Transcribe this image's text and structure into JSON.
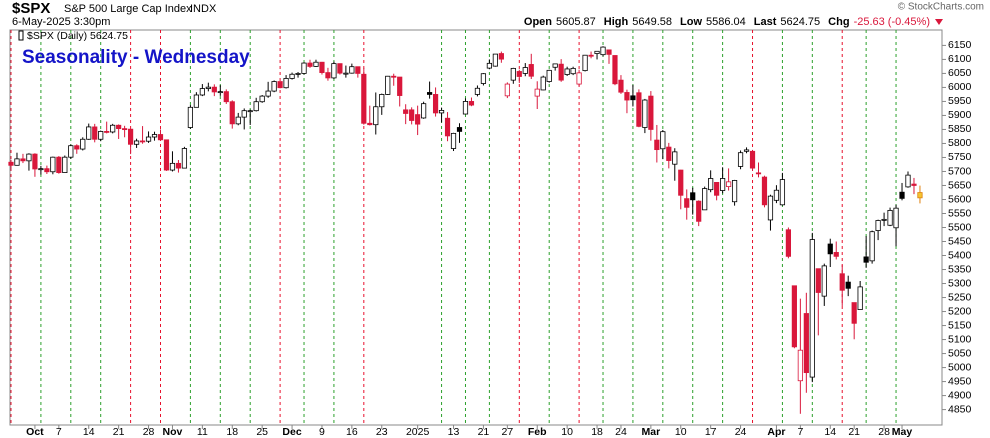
{
  "chart_data": {
    "type": "candlestick",
    "symbol": "$SPX",
    "name": "S&P 500 Large Cap Index",
    "exchange": "INDX",
    "date": "6-May-2025 3:30pm",
    "quote": [
      {
        "label": "Open",
        "value": 5605.87
      },
      {
        "label": "High",
        "value": 5649.58
      },
      {
        "label": "Low",
        "value": 5586.04
      },
      {
        "label": "Last",
        "value": 5624.75
      }
    ],
    "change_label": "Chg",
    "change": "-25.63 (-0.45%)",
    "copyright": "© StockCharts.com",
    "legend_label": "$SPX (Daily) 5624.75",
    "title": "Seasonality - Wednesday",
    "colors": {
      "up": "#000000",
      "down": "#d9173b",
      "live": "#f4c430",
      "live_edge": "#e0800b",
      "title": "#1414c8",
      "change": "#d9173b"
    },
    "ylim": [
      4795,
      6205
    ],
    "yticks": [
      4850,
      4900,
      4950,
      5000,
      5050,
      5100,
      5150,
      5200,
      5250,
      5300,
      5350,
      5400,
      5450,
      5500,
      5550,
      5600,
      5650,
      5700,
      5750,
      5800,
      5850,
      5900,
      5950,
      6000,
      6050,
      6100,
      6150
    ],
    "grid": false,
    "categories": [
      null,
      null,
      null,
      null,
      "Oct",
      null,
      null,
      null,
      "7",
      null,
      null,
      null,
      null,
      "14",
      null,
      null,
      null,
      null,
      "21",
      null,
      null,
      null,
      null,
      "28",
      null,
      null,
      null,
      "Nov",
      null,
      null,
      null,
      null,
      "11",
      null,
      null,
      null,
      null,
      "18",
      null,
      null,
      null,
      null,
      "25",
      null,
      null,
      null,
      null,
      "Dec",
      null,
      null,
      null,
      null,
      "9",
      null,
      null,
      null,
      null,
      "16",
      null,
      null,
      null,
      null,
      "23",
      null,
      null,
      null,
      null,
      null,
      "2025",
      null,
      null,
      null,
      null,
      null,
      "13",
      null,
      null,
      null,
      null,
      "21",
      null,
      null,
      null,
      "27",
      null,
      null,
      null,
      null,
      "Feb",
      null,
      null,
      null,
      null,
      "10",
      null,
      null,
      null,
      null,
      "18",
      null,
      null,
      null,
      "24",
      null,
      null,
      null,
      null,
      "Mar",
      null,
      null,
      null,
      null,
      "10",
      null,
      null,
      null,
      null,
      "17",
      null,
      null,
      null,
      null,
      "24",
      null,
      null,
      null,
      null,
      null,
      "Apr",
      null,
      null,
      null,
      "7",
      null,
      null,
      null,
      null,
      "14",
      null,
      null,
      null,
      "21",
      null,
      null,
      null,
      null,
      "28",
      null,
      null,
      "May",
      null,
      null,
      null
    ],
    "wednesday_lines": [
      "#e8112d",
      null,
      null,
      null,
      null,
      "#2ca02c",
      null,
      null,
      null,
      null,
      "#2ca02c",
      null,
      null,
      null,
      null,
      "#2ca02c",
      null,
      null,
      null,
      null,
      "#e8112d",
      null,
      null,
      null,
      null,
      "#e8112d",
      null,
      null,
      null,
      null,
      "#2ca02c",
      null,
      null,
      null,
      null,
      "#2ca02c",
      null,
      null,
      null,
      null,
      "#2ca02c",
      null,
      null,
      null,
      null,
      "#e8112d",
      null,
      null,
      null,
      "#2ca02c",
      null,
      null,
      null,
      null,
      "#2ca02c",
      null,
      null,
      null,
      null,
      "#e8112d",
      null,
      null,
      null,
      null,
      null,
      null,
      null,
      null,
      null,
      null,
      null,
      null,
      "#2ca02c",
      null,
      null,
      null,
      "#2ca02c",
      null,
      null,
      null,
      "#2ca02c",
      null,
      null,
      null,
      null,
      "#e8112d",
      null,
      null,
      null,
      null,
      "#2ca02c",
      null,
      null,
      null,
      null,
      "#e8112d",
      null,
      null,
      null,
      "#2ca02c",
      null,
      null,
      null,
      null,
      "#2ca02c",
      null,
      null,
      null,
      null,
      "#2ca02c",
      null,
      null,
      null,
      null,
      "#2ca02c",
      null,
      null,
      null,
      null,
      "#2ca02c",
      null,
      null,
      null,
      null,
      "#e8112d",
      null,
      null,
      null,
      null,
      "#2ca02c",
      null,
      null,
      null,
      null,
      "#2ca02c",
      null,
      null,
      null,
      null,
      "#e8112d",
      null,
      null,
      null,
      "#2ca02c",
      null,
      null,
      null,
      null,
      "#2ca02c",
      null,
      null,
      null,
      null
    ],
    "open": [
      5733,
      5722,
      5745,
      5738,
      5762,
      5709,
      5710,
      5699,
      5751,
      5696,
      5751,
      5792,
      5780,
      5815,
      5859,
      5815,
      5843,
      5841,
      5865,
      5853,
      5851,
      5797,
      5809,
      5808,
      5823,
      5832,
      5813,
      5705,
      5729,
      5712,
      5857,
      5929,
      5973,
      5996,
      6001,
      5984,
      5985,
      5949,
      5870,
      5894,
      5917,
      5917,
      5949,
      5969,
      5987,
      6021,
      5999,
      6032,
      6047,
      6050,
      6087,
      6075,
      6090,
      6053,
      6034,
      6085,
      6051,
      6051,
      6074,
      6047,
      5872,
      5867,
      5931,
      5975,
      6040,
      6037,
      5920,
      5920,
      5903,
      5891,
      5982,
      5975,
      5909,
      5890,
      5782,
      5857,
      5905,
      5950,
      5975,
      6014,
      6069,
      6076,
      6121,
      5970,
      6026,
      6057,
      6050,
      6082,
      5969,
      5991,
      6021,
      6072,
      6083,
      6046,
      6049,
      6012,
      6060,
      6115,
      6121,
      6117,
      6134,
      6114,
      6026,
      5982,
      5970,
      5981,
      5857,
      5969,
      5812,
      5781,
      5787,
      5726,
      5705,
      5603,
      5624,
      5594,
      5563,
      5635,
      5661,
      5632,
      5646,
      5592,
      5718,
      5772,
      5772,
      5695,
      5680,
      5527,
      5597,
      5581,
      5492,
      5292,
      4953,
      5193,
      4966,
      5353,
      5255,
      5441,
      5411,
      5335,
      5305,
      5232,
      5207,
      5395,
      5381,
      5489,
      5529,
      5508,
      5499,
      5626,
      5645,
      5655,
      5605.87
    ],
    "high": [
      5742,
      5767,
      5763,
      5765,
      5765,
      5720,
      5721,
      5753,
      5755,
      5757,
      5796,
      5797,
      5822,
      5871,
      5870,
      5846,
      5878,
      5870,
      5868,
      5863,
      5852,
      5817,
      5862,
      5843,
      5842,
      5850,
      5813,
      5772,
      5741,
      5788,
      5937,
      5983,
      6012,
      6017,
      6011,
      6008,
      5993,
      5954,
      5909,
      5925,
      5921,
      5963,
      5973,
      6020,
      6025,
      6021,
      6044,
      6053,
      6055,
      6090,
      6099,
      6099,
      6091,
      6070,
      6092,
      6085,
      6078,
      6085,
      6074,
      6070,
      5935,
      5982,
      5978,
      6041,
      6049,
      6037,
      5940,
      5929,
      5935,
      5949,
      6021,
      6000,
      5928,
      5912,
      5838,
      5872,
      5961,
      5964,
      6007,
      6051,
      6100,
      6119,
      6128,
      6018,
      6070,
      6063,
      6087,
      6120,
      6022,
      6042,
      6063,
      6084,
      6101,
      6074,
      6074,
      6063,
      6116,
      6128,
      6129,
      6147,
      6134,
      6114,
      6044,
      5992,
      6009,
      5993,
      5959,
      5987,
      5866,
      5848,
      5802,
      5783,
      5706,
      5636,
      5642,
      5597,
      5646,
      5704,
      5661,
      5715,
      5711,
      5670,
      5775,
      5786,
      5777,
      5732,
      5685,
      5617,
      5651,
      5695,
      5500,
      5292,
      5246,
      5267,
      5481,
      5353,
      5371,
      5460,
      5450,
      5367,
      5328,
      5232,
      5309,
      5469,
      5489,
      5528,
      5553,
      5571,
      5581,
      5659,
      5700,
      5677,
      5649.58
    ],
    "low": [
      5702,
      5721,
      5730,
      5703,
      5681,
      5689,
      5691,
      5690,
      5692,
      5695,
      5745,
      5763,
      5775,
      5813,
      5804,
      5808,
      5836,
      5836,
      5816,
      5822,
      5762,
      5784,
      5799,
      5802,
      5810,
      5811,
      5702,
      5700,
      5696,
      5712,
      5852,
      5929,
      5969,
      5986,
      5969,
      5970,
      5941,
      5853,
      5865,
      5850,
      5866,
      5914,
      5945,
      5963,
      5983,
      5997,
      5996,
      6028,
      6035,
      6046,
      6070,
      6073,
      6046,
      6024,
      6030,
      6046,
      6035,
      6049,
      6035,
      5867,
      5864,
      5832,
      5902,
      5973,
      6006,
      5932,
      5869,
      5868,
      5830,
      5888,
      5960,
      5896,
      5875,
      5808,
      5773,
      5802,
      5905,
      5933,
      5968,
      6007,
      6065,
      6074,
      6088,
      5962,
      6013,
      6016,
      6040,
      6030,
      5923,
      5990,
      6017,
      6060,
      6020,
      6041,
      6044,
      6004,
      6057,
      6104,
      6100,
      6111,
      6084,
      6008,
      5977,
      5908,
      5932,
      5858,
      5837,
      5810,
      5732,
      5744,
      5711,
      5667,
      5565,
      5528,
      5546,
      5505,
      5563,
      5626,
      5597,
      5622,
      5632,
      5578,
      5708,
      5765,
      5703,
      5679,
      5572,
      5489,
      5587,
      5578,
      5390,
      5069,
      4835,
      4910,
      4948,
      5115,
      5220,
      5359,
      5386,
      5220,
      5255,
      5101,
      5207,
      5356,
      5371,
      5455,
      5505,
      5505,
      5433,
      5597,
      5642,
      5619,
      5586.04
    ],
    "close": [
      5722,
      5745,
      5738,
      5762,
      5709,
      5710,
      5699,
      5751,
      5696,
      5751,
      5792,
      5780,
      5815,
      5859,
      5815,
      5843,
      5841,
      5865,
      5853,
      5851,
      5797,
      5809,
      5808,
      5823,
      5832,
      5813,
      5705,
      5729,
      5712,
      5782,
      5929,
      5973,
      5996,
      6001,
      5984,
      5985,
      5949,
      5870,
      5894,
      5917,
      5917,
      5949,
      5969,
      5987,
      6021,
      5999,
      6032,
      6047,
      6050,
      6087,
      6075,
      6090,
      6053,
      6034,
      6085,
      6051,
      6051,
      6074,
      6050,
      5872,
      5867,
      5931,
      5975,
      6040,
      6037,
      5971,
      5907,
      5882,
      5869,
      5942,
      5975,
      5909,
      5918,
      5827,
      5836,
      5843,
      5950,
      5937,
      5997,
      6049,
      6086,
      6119,
      6101,
      6012,
      6068,
      6039,
      6071,
      6040,
      5994,
      6037,
      6061,
      6084,
      6026,
      6066,
      6068,
      6052,
      6115,
      6114,
      6129,
      6144,
      6118,
      6013,
      5983,
      5955,
      5956,
      5861,
      5955,
      5850,
      5778,
      5842,
      5739,
      5770,
      5615,
      5572,
      5599,
      5522,
      5639,
      5675,
      5615,
      5675,
      5663,
      5668,
      5767,
      5777,
      5712,
      5693,
      5581,
      5612,
      5633,
      5671,
      5397,
      5074,
      5062,
      4982,
      5457,
      5268,
      5363,
      5406,
      5397,
      5276,
      5283,
      5158,
      5288,
      5376,
      5485,
      5525,
      5529,
      5561,
      5569,
      5604,
      5687,
      5650,
      5624.75
    ]
  }
}
